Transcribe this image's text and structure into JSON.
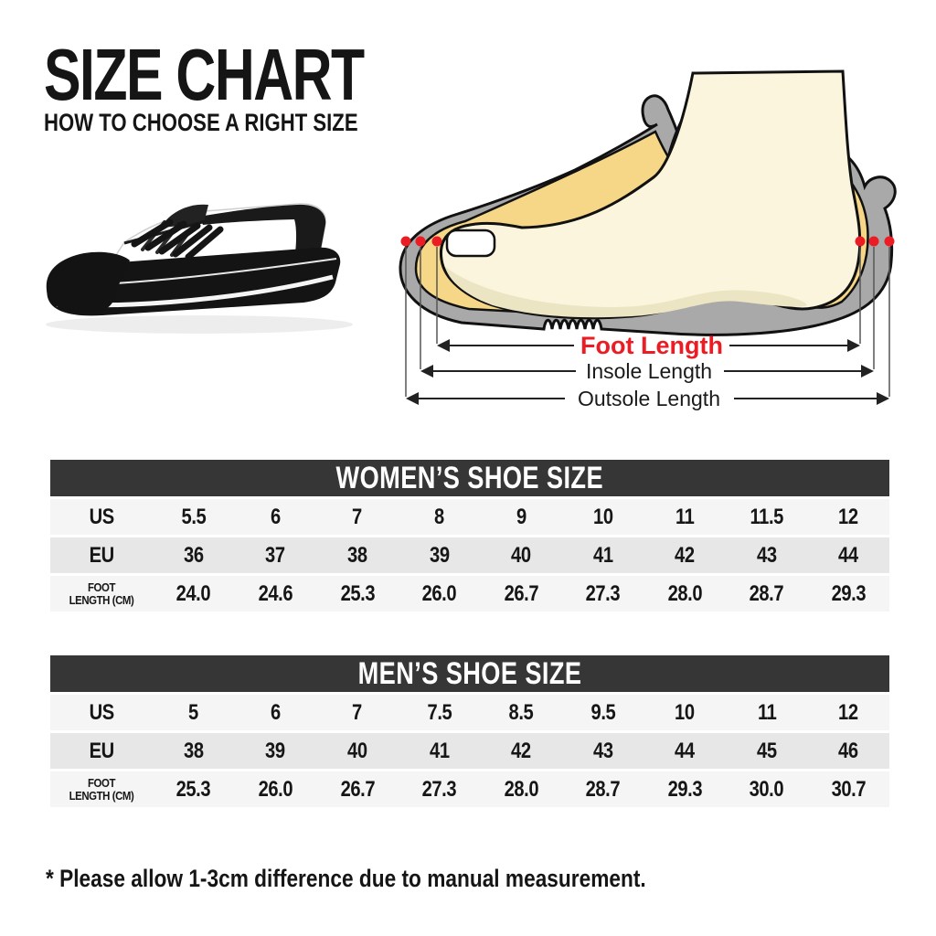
{
  "header": {
    "title": "SIZE CHART",
    "subtitle": "HOW TO CHOOSE A RIGHT SIZE"
  },
  "diagram": {
    "foot_length_label": "Foot Length",
    "insole_label": "Insole Length",
    "outsole_label": "Outsole Length",
    "colors": {
      "highlight_red": "#ec1c24",
      "shoe_gray": "#a9a9a9",
      "insole_yellow": "#f5d787",
      "foot_cream": "#faf5dc"
    }
  },
  "tables": {
    "women": {
      "title": "WOMEN’S SHOE SIZE",
      "rows": [
        {
          "label": "US",
          "label_lines": [
            "US"
          ],
          "values": [
            "5.5",
            "6",
            "7",
            "8",
            "9",
            "10",
            "11",
            "11.5",
            "12"
          ]
        },
        {
          "label": "EU",
          "label_lines": [
            "EU"
          ],
          "values": [
            "36",
            "37",
            "38",
            "39",
            "40",
            "41",
            "42",
            "43",
            "44"
          ]
        },
        {
          "label": "FOOT LENGTH (CM)",
          "label_lines": [
            "FOOT",
            "LENGTH (CM)"
          ],
          "values": [
            "24.0",
            "24.6",
            "25.3",
            "26.0",
            "26.7",
            "27.3",
            "28.0",
            "28.7",
            "29.3"
          ]
        }
      ]
    },
    "men": {
      "title": "MEN’S SHOE SIZE",
      "rows": [
        {
          "label": "US",
          "label_lines": [
            "US"
          ],
          "values": [
            "5",
            "6",
            "7",
            "7.5",
            "8.5",
            "9.5",
            "10",
            "11",
            "12"
          ]
        },
        {
          "label": "EU",
          "label_lines": [
            "EU"
          ],
          "values": [
            "38",
            "39",
            "40",
            "41",
            "42",
            "43",
            "44",
            "45",
            "46"
          ]
        },
        {
          "label": "FOOT LENGTH (CM)",
          "label_lines": [
            "FOOT",
            "LENGTH (CM)"
          ],
          "values": [
            "25.3",
            "26.0",
            "26.7",
            "27.3",
            "28.0",
            "28.7",
            "29.3",
            "30.0",
            "30.7"
          ]
        }
      ]
    }
  },
  "footnote": {
    "text": "* Please allow 1-3cm difference due to manual measurement."
  }
}
